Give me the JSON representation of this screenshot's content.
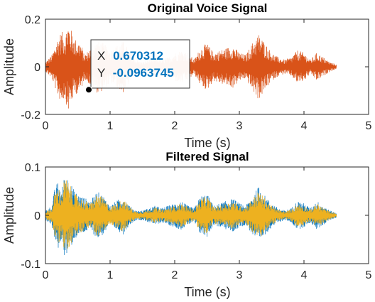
{
  "chart_data": [
    {
      "type": "line",
      "title": "Original Voice Signal",
      "xlabel": "Time (s)",
      "ylabel": "Amplitude",
      "xlim": [
        0,
        5
      ],
      "ylim": [
        -0.2,
        0.2
      ],
      "xticks": [
        0,
        1,
        2,
        3,
        4,
        5
      ],
      "xtick_labels": [
        "0",
        "1",
        "2",
        "3",
        "4",
        "5"
      ],
      "yticks": [
        0.2,
        0,
        -0.2
      ],
      "ytick_labels": [
        "0.2",
        "0",
        "-0.2"
      ],
      "grid": false,
      "series": [
        {
          "color": "#D95319",
          "x_range": [
            0,
            4.5
          ],
          "envelope": [
            [
              0.0,
              0.02
            ],
            [
              0.1,
              0.05
            ],
            [
              0.2,
              0.13
            ],
            [
              0.25,
              0.15
            ],
            [
              0.3,
              0.13
            ],
            [
              0.35,
              0.19
            ],
            [
              0.45,
              0.12
            ],
            [
              0.55,
              0.1
            ],
            [
              0.6,
              0.05
            ],
            [
              0.7,
              0.08
            ],
            [
              0.8,
              0.11
            ],
            [
              0.9,
              0.1
            ],
            [
              1.0,
              0.07
            ],
            [
              1.1,
              0.09
            ],
            [
              1.2,
              0.11
            ],
            [
              1.3,
              0.07
            ],
            [
              1.4,
              0.03
            ],
            [
              1.5,
              0.02
            ],
            [
              1.6,
              0.03
            ],
            [
              1.7,
              0.04
            ],
            [
              1.8,
              0.03
            ],
            [
              1.9,
              0.04
            ],
            [
              2.0,
              0.06
            ],
            [
              2.1,
              0.07
            ],
            [
              2.2,
              0.06
            ],
            [
              2.3,
              0.03
            ],
            [
              2.4,
              0.08
            ],
            [
              2.5,
              0.1
            ],
            [
              2.6,
              0.06
            ],
            [
              2.7,
              0.07
            ],
            [
              2.8,
              0.08
            ],
            [
              2.9,
              0.09
            ],
            [
              3.0,
              0.06
            ],
            [
              3.1,
              0.05
            ],
            [
              3.2,
              0.1
            ],
            [
              3.3,
              0.14
            ],
            [
              3.4,
              0.1
            ],
            [
              3.5,
              0.06
            ],
            [
              3.6,
              0.04
            ],
            [
              3.7,
              0.03
            ],
            [
              3.8,
              0.04
            ],
            [
              3.9,
              0.07
            ],
            [
              4.0,
              0.06
            ],
            [
              4.1,
              0.03
            ],
            [
              4.2,
              0.06
            ],
            [
              4.3,
              0.04
            ],
            [
              4.4,
              0.02
            ],
            [
              4.5,
              0.01
            ]
          ]
        }
      ],
      "datatip": {
        "x_label": "X",
        "x_value": "0.670312",
        "y_label": "Y",
        "y_value": "-0.0963745",
        "x": 0.670312,
        "y": -0.0963745
      }
    },
    {
      "type": "line",
      "title": "Filtered Signal",
      "xlabel": "Time (s)",
      "ylabel": "Amplitude",
      "xlim": [
        0,
        5
      ],
      "ylim": [
        -0.1,
        0.1
      ],
      "xticks": [
        0,
        1,
        2,
        3,
        4,
        5
      ],
      "xtick_labels": [
        "0",
        "1",
        "2",
        "3",
        "4",
        "5"
      ],
      "yticks": [
        0.1,
        0,
        -0.1
      ],
      "ytick_labels": [
        "0.1",
        "0",
        "-0.1"
      ],
      "grid": false,
      "series": [
        {
          "color": "#0072BD",
          "x_range": [
            0,
            4.5
          ],
          "envelope": [
            [
              0.0,
              0.01
            ],
            [
              0.1,
              0.02
            ],
            [
              0.15,
              0.06
            ],
            [
              0.2,
              0.07
            ],
            [
              0.25,
              0.05
            ],
            [
              0.3,
              0.09
            ],
            [
              0.35,
              0.08
            ],
            [
              0.45,
              0.05
            ],
            [
              0.55,
              0.04
            ],
            [
              0.7,
              0.03
            ],
            [
              0.8,
              0.05
            ],
            [
              0.9,
              0.04
            ],
            [
              1.0,
              0.02
            ],
            [
              1.1,
              0.03
            ],
            [
              1.2,
              0.04
            ],
            [
              1.3,
              0.02
            ],
            [
              1.4,
              0.01
            ],
            [
              1.5,
              0.01
            ],
            [
              1.6,
              0.015
            ],
            [
              1.7,
              0.02
            ],
            [
              1.8,
              0.015
            ],
            [
              1.9,
              0.02
            ],
            [
              2.0,
              0.025
            ],
            [
              2.1,
              0.03
            ],
            [
              2.2,
              0.02
            ],
            [
              2.3,
              0.015
            ],
            [
              2.4,
              0.04
            ],
            [
              2.5,
              0.045
            ],
            [
              2.6,
              0.02
            ],
            [
              2.7,
              0.025
            ],
            [
              2.8,
              0.03
            ],
            [
              2.9,
              0.035
            ],
            [
              3.0,
              0.025
            ],
            [
              3.1,
              0.02
            ],
            [
              3.2,
              0.04
            ],
            [
              3.3,
              0.06
            ],
            [
              3.4,
              0.04
            ],
            [
              3.5,
              0.025
            ],
            [
              3.6,
              0.015
            ],
            [
              3.7,
              0.01
            ],
            [
              3.8,
              0.015
            ],
            [
              3.9,
              0.03
            ],
            [
              4.0,
              0.025
            ],
            [
              4.1,
              0.015
            ],
            [
              4.2,
              0.03
            ],
            [
              4.3,
              0.02
            ],
            [
              4.4,
              0.01
            ],
            [
              4.5,
              0.005
            ]
          ]
        },
        {
          "color": "#EDB120",
          "x_range": [
            0,
            4.5
          ],
          "envelope": [
            [
              0.0,
              0.008
            ],
            [
              0.1,
              0.015
            ],
            [
              0.15,
              0.05
            ],
            [
              0.2,
              0.06
            ],
            [
              0.25,
              0.045
            ],
            [
              0.3,
              0.08
            ],
            [
              0.35,
              0.07
            ],
            [
              0.45,
              0.045
            ],
            [
              0.55,
              0.035
            ],
            [
              0.7,
              0.025
            ],
            [
              0.8,
              0.045
            ],
            [
              0.9,
              0.035
            ],
            [
              1.0,
              0.018
            ],
            [
              1.1,
              0.025
            ],
            [
              1.2,
              0.035
            ],
            [
              1.3,
              0.018
            ],
            [
              1.4,
              0.008
            ],
            [
              1.5,
              0.008
            ],
            [
              1.6,
              0.012
            ],
            [
              1.7,
              0.016
            ],
            [
              1.8,
              0.012
            ],
            [
              1.9,
              0.016
            ],
            [
              2.0,
              0.02
            ],
            [
              2.1,
              0.025
            ],
            [
              2.2,
              0.018
            ],
            [
              2.3,
              0.012
            ],
            [
              2.4,
              0.035
            ],
            [
              2.5,
              0.04
            ],
            [
              2.6,
              0.018
            ],
            [
              2.7,
              0.02
            ],
            [
              2.8,
              0.025
            ],
            [
              2.9,
              0.03
            ],
            [
              3.0,
              0.02
            ],
            [
              3.1,
              0.018
            ],
            [
              3.2,
              0.035
            ],
            [
              3.3,
              0.05
            ],
            [
              3.4,
              0.035
            ],
            [
              3.5,
              0.02
            ],
            [
              3.6,
              0.012
            ],
            [
              3.7,
              0.008
            ],
            [
              3.8,
              0.012
            ],
            [
              3.9,
              0.025
            ],
            [
              4.0,
              0.02
            ],
            [
              4.1,
              0.012
            ],
            [
              4.2,
              0.025
            ],
            [
              4.3,
              0.016
            ],
            [
              4.4,
              0.008
            ],
            [
              4.5,
              0.004
            ]
          ]
        }
      ]
    }
  ]
}
